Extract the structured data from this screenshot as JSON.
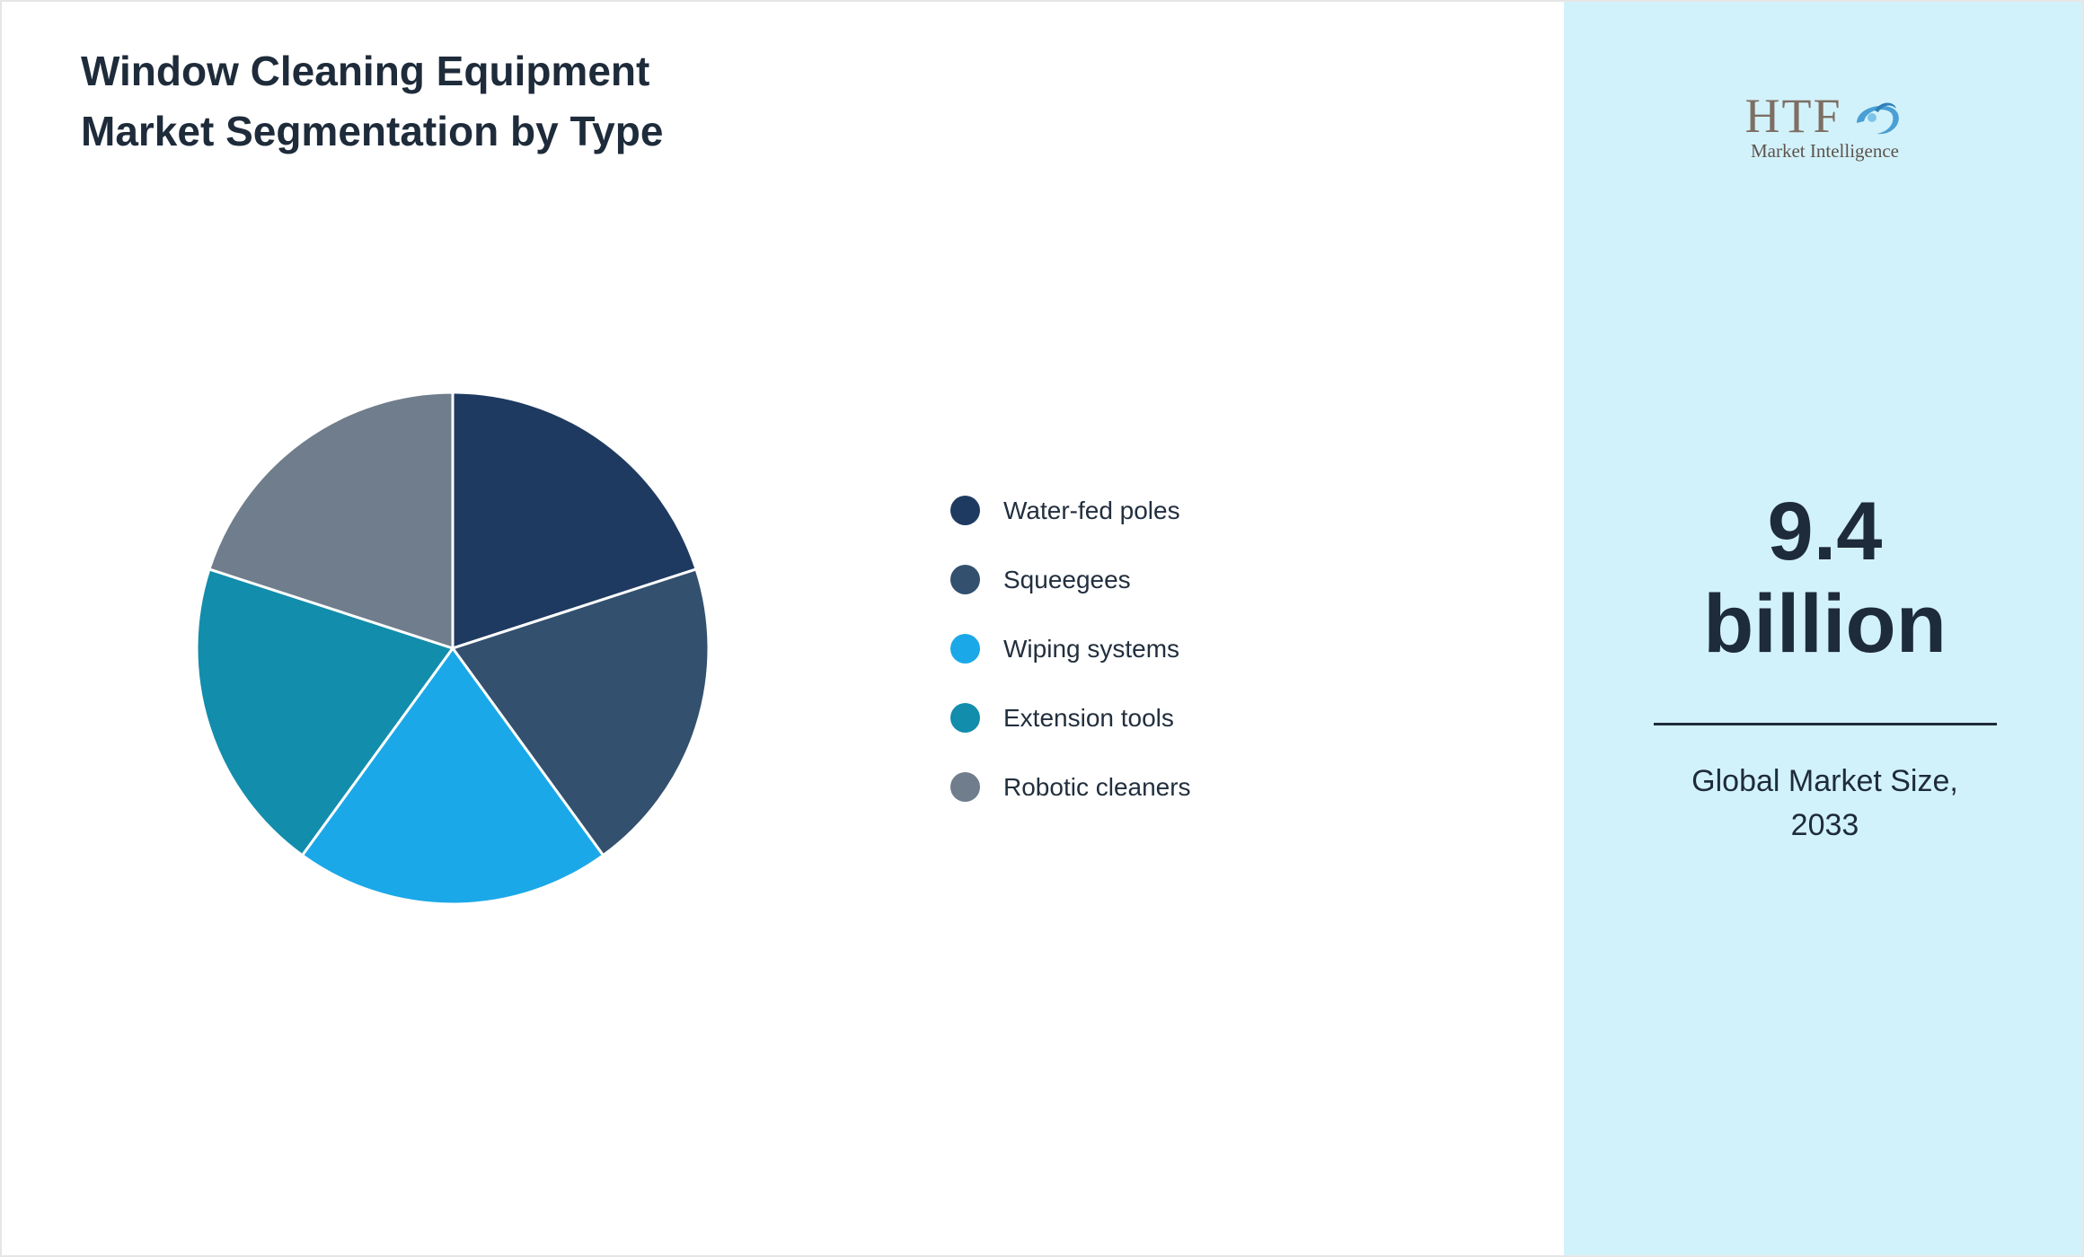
{
  "header": {
    "title_line1": "Window Cleaning Equipment",
    "title_line2": "Market Segmentation by Type"
  },
  "chart_data": {
    "type": "pie",
    "title": "Window Cleaning Equipment Market Segmentation by Type",
    "labels": [
      "Water-fed poles",
      "Squeegees",
      "Wiping systems",
      "Extension tools",
      "Robotic cleaners"
    ],
    "values": [
      20,
      20,
      20,
      20,
      20
    ],
    "colors": [
      "#1f3a60",
      "#33506e",
      "#1ba8e8",
      "#128dab",
      "#6f7d8c"
    ],
    "legend_position": "right",
    "start_angle_deg": -90,
    "direction": "clockwise",
    "slice_border_color": "#ffffff"
  },
  "sidebar": {
    "bg_color": "#d2f2fb",
    "logo_text": "HTF",
    "logo_subtext": "Market Intelligence",
    "market_size_value": "9.4",
    "market_size_unit": "billion",
    "caption_line1": "Global Market Size,",
    "caption_line2": "2033"
  }
}
